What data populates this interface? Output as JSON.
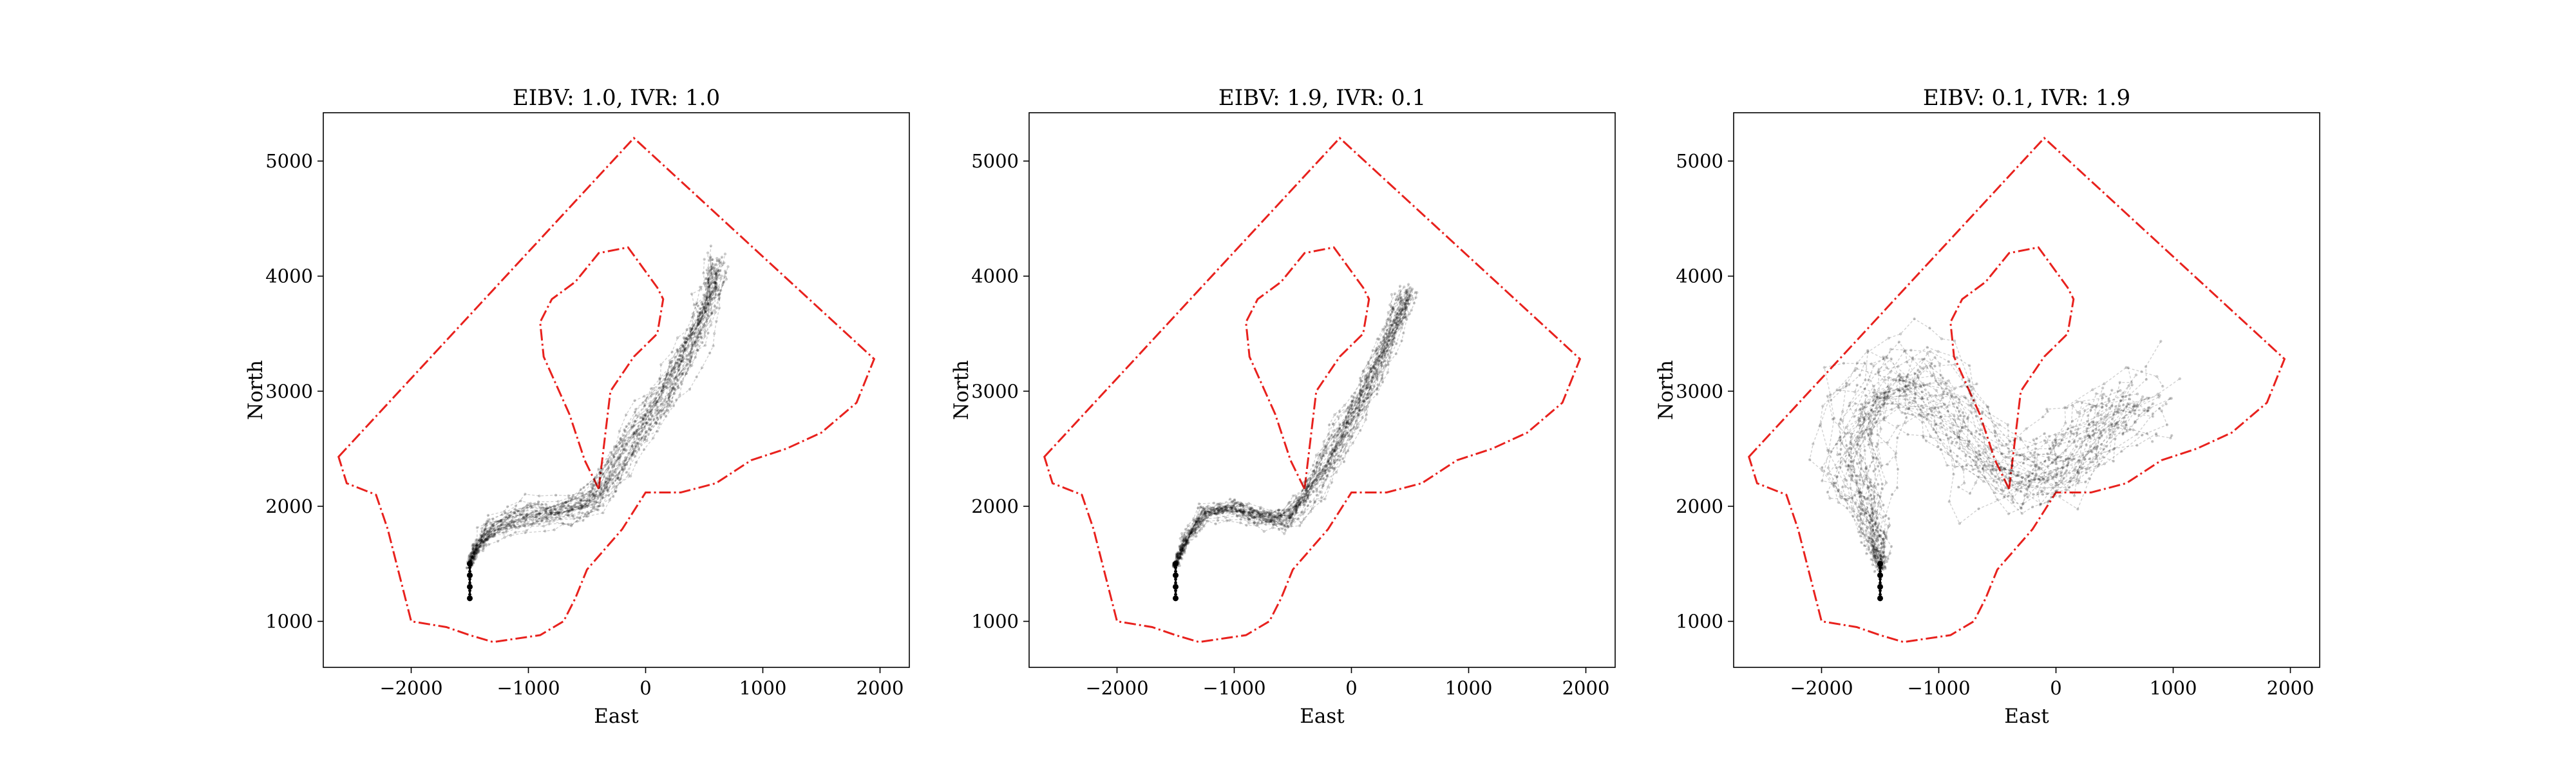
{
  "chart_data": [
    {
      "type": "line",
      "title": "EIBV: 1.0, IVR: 1.0",
      "xlabel": "East",
      "ylabel": "North",
      "xlim": [
        -2750,
        2250
      ],
      "ylim": [
        600,
        5420
      ],
      "xticks": [
        -2000,
        -1000,
        0,
        1000,
        2000
      ],
      "xtick_labels": [
        "−2000",
        "−1000",
        "0",
        "1000",
        "2000"
      ],
      "yticks": [
        1000,
        2000,
        3000,
        4000,
        5000
      ],
      "ytick_labels": [
        "1000",
        "2000",
        "3000",
        "4000",
        "5000"
      ],
      "grid": false,
      "legend": "none",
      "path_spread": "follows the channel east of the island, clustered",
      "series": [
        {
          "x": [
            -1500,
            -1500,
            -1500,
            -1500,
            -1440,
            -1300,
            -1000,
            -700,
            -450,
            -250,
            -50,
            150,
            320,
            470,
            560,
            610
          ],
          "y": [
            1200,
            1300,
            1400,
            1500,
            1650,
            1800,
            1900,
            1950,
            2050,
            2300,
            2650,
            2950,
            3250,
            3550,
            3850,
            4100
          ]
        }
      ]
    },
    {
      "type": "line",
      "title": "EIBV: 1.9, IVR: 0.1",
      "xlabel": "East",
      "ylabel": "North",
      "xlim": [
        -2750,
        2250
      ],
      "ylim": [
        600,
        5420
      ],
      "xticks": [
        -2000,
        -1000,
        0,
        1000,
        2000
      ],
      "xtick_labels": [
        "−2000",
        "−1000",
        "0",
        "1000",
        "2000"
      ],
      "yticks": [
        1000,
        2000,
        3000,
        4000,
        5000
      ],
      "ytick_labels": [
        "1000",
        "2000",
        "3000",
        "4000",
        "5000"
      ],
      "grid": false,
      "legend": "none",
      "path_spread": "follows the channel east of the island, tightly clustered",
      "series": [
        {
          "x": [
            -1500,
            -1500,
            -1500,
            -1500,
            -1420,
            -1250,
            -1000,
            -780,
            -560,
            -380,
            -200,
            -50,
            100,
            250,
            380,
            470
          ],
          "y": [
            1200,
            1300,
            1400,
            1500,
            1700,
            1950,
            2000,
            1920,
            1880,
            2100,
            2400,
            2700,
            3000,
            3300,
            3600,
            3850
          ]
        }
      ]
    },
    {
      "type": "line",
      "title": "EIBV: 0.1, IVR: 1.9",
      "xlabel": "East",
      "ylabel": "North",
      "xlim": [
        -2750,
        2250
      ],
      "ylim": [
        600,
        5420
      ],
      "xticks": [
        -2000,
        -1000,
        0,
        1000,
        2000
      ],
      "xtick_labels": [
        "−2000",
        "−1000",
        "0",
        "1000",
        "2000"
      ],
      "yticks": [
        1000,
        2000,
        3000,
        4000,
        5000
      ],
      "ytick_labels": [
        "1000",
        "2000",
        "3000",
        "4000",
        "5000"
      ],
      "grid": false,
      "legend": "none",
      "path_spread": "widely dispersed across the whole domain",
      "series": [
        {
          "x": [
            -1500,
            -1500,
            -1500,
            -1500,
            -1550,
            -1650,
            -1750,
            -1600,
            -1300,
            -1000,
            -700,
            -400,
            -150,
            150,
            450,
            700
          ],
          "y": [
            1200,
            1300,
            1400,
            1500,
            1750,
            2100,
            2500,
            2900,
            3150,
            3000,
            2600,
            2250,
            2250,
            2500,
            2800,
            3000
          ]
        }
      ]
    }
  ],
  "boundary": {
    "color": "#e8211d",
    "outer": [
      [
        -2620,
        2430
      ],
      [
        -100,
        5200
      ],
      [
        1950,
        3280
      ],
      [
        1800,
        2900
      ],
      [
        1500,
        2640
      ],
      [
        1200,
        2500
      ],
      [
        900,
        2400
      ],
      [
        600,
        2200
      ],
      [
        300,
        2120
      ],
      [
        0,
        2120
      ],
      [
        -200,
        1800
      ],
      [
        -500,
        1450
      ],
      [
        -600,
        1200
      ],
      [
        -700,
        1000
      ],
      [
        -900,
        880
      ],
      [
        -1100,
        850
      ],
      [
        -1300,
        820
      ],
      [
        -1500,
        880
      ],
      [
        -1700,
        950
      ],
      [
        -2000,
        1000
      ],
      [
        -2100,
        1400
      ],
      [
        -2200,
        1800
      ],
      [
        -2300,
        2100
      ],
      [
        -2550,
        2200
      ]
    ],
    "island": [
      [
        -400,
        2150
      ],
      [
        -520,
        2400
      ],
      [
        -650,
        2800
      ],
      [
        -870,
        3300
      ],
      [
        -900,
        3600
      ],
      [
        -800,
        3800
      ],
      [
        -600,
        3950
      ],
      [
        -400,
        4200
      ],
      [
        -150,
        4250
      ],
      [
        100,
        3900
      ],
      [
        150,
        3800
      ],
      [
        100,
        3500
      ],
      [
        -100,
        3300
      ],
      [
        -300,
        3000
      ]
    ]
  },
  "trajectories": {
    "color": "#000000"
  }
}
